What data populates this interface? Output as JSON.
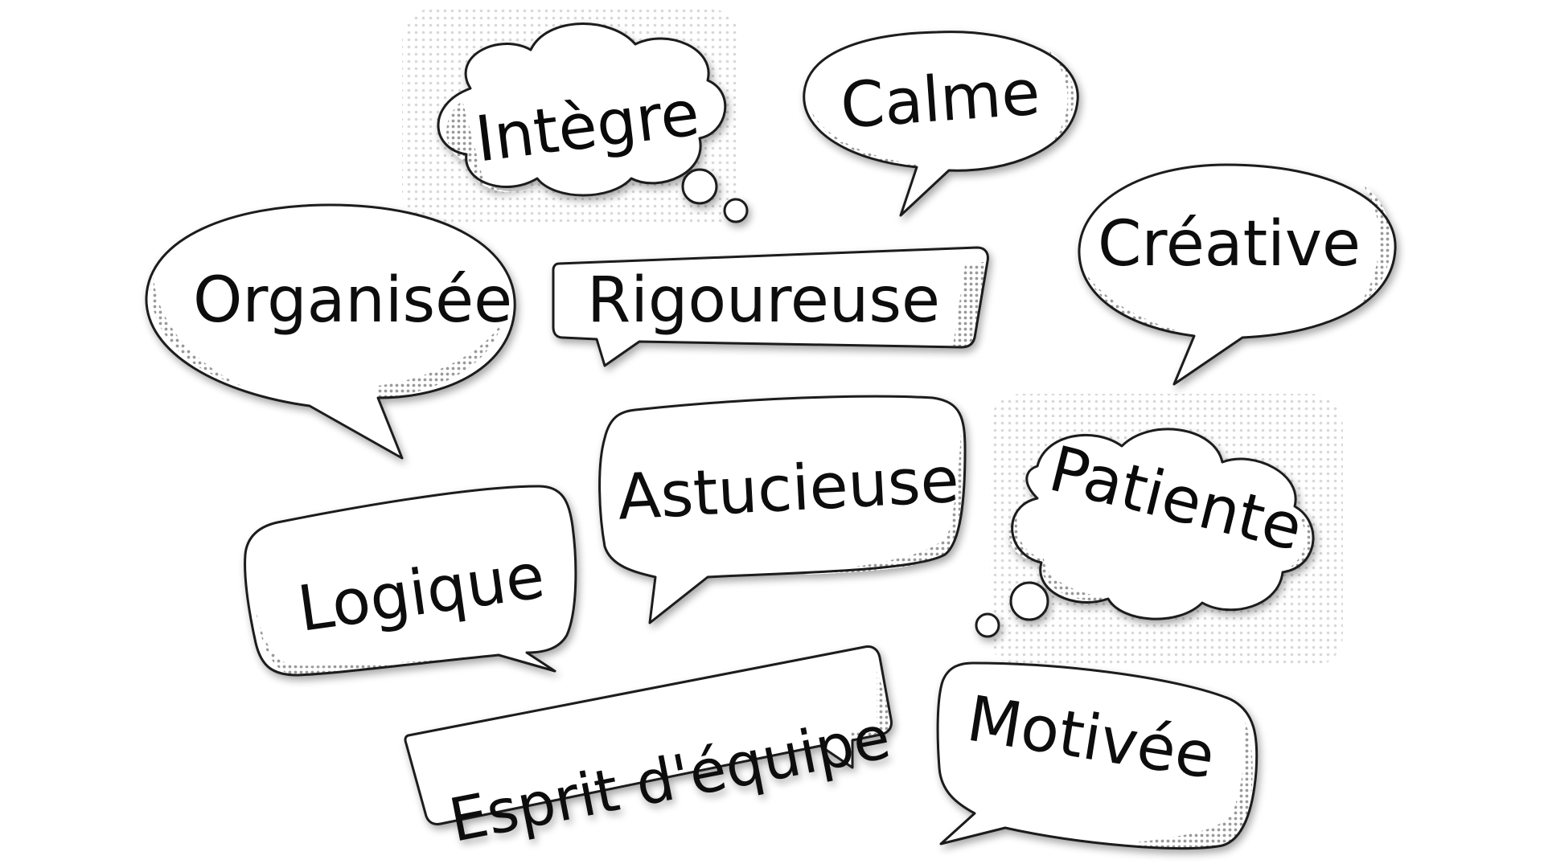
{
  "bubbles": [
    {
      "word": "Intègre",
      "shape": "cloud"
    },
    {
      "word": "Calme",
      "shape": "oval"
    },
    {
      "word": "Organisée",
      "shape": "oval"
    },
    {
      "word": "Rigoureuse",
      "shape": "rectangle"
    },
    {
      "word": "Créative",
      "shape": "oval"
    },
    {
      "word": "Astucieuse",
      "shape": "rounded-rectangle"
    },
    {
      "word": "Patiente",
      "shape": "cloud"
    },
    {
      "word": "Logique",
      "shape": "rounded-rectangle"
    },
    {
      "word": "Esprit d'équipe",
      "shape": "rectangle"
    },
    {
      "word": "Motivée",
      "shape": "rounded-rectangle"
    }
  ],
  "colors": {
    "background": "#ffffff",
    "bubble": "#ffffff",
    "outline": "#1a1a1a",
    "halftone": "#9a9a9a",
    "text": "#0a0a0a"
  }
}
